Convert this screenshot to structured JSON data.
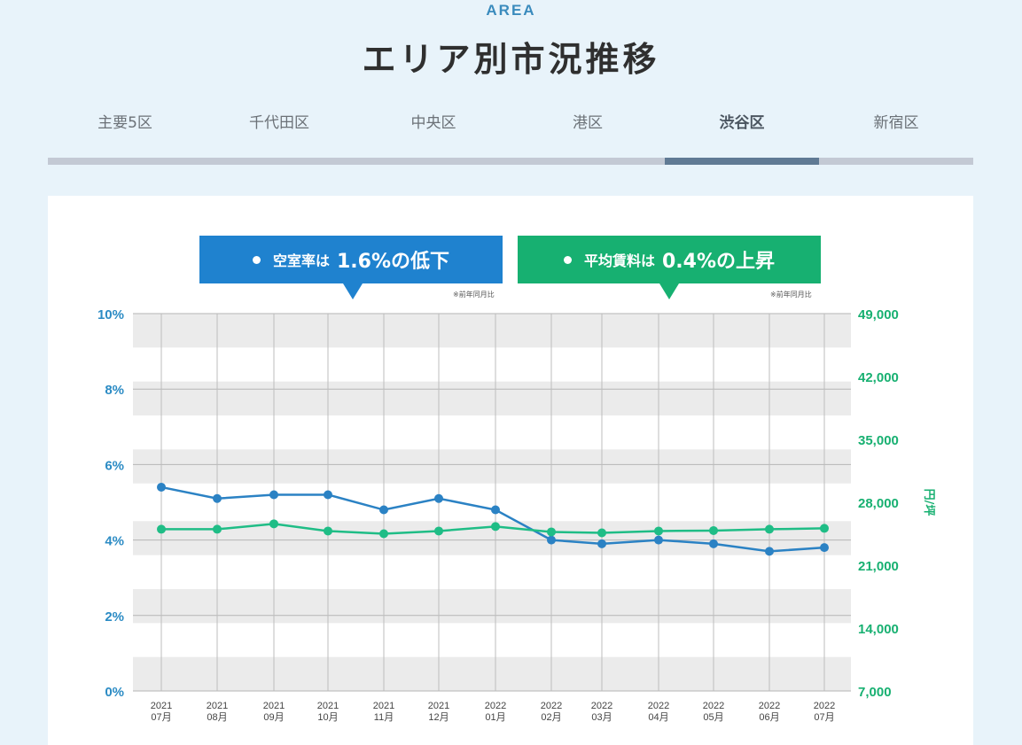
{
  "header": {
    "eyebrow": "AREA",
    "title": "エリア別市況推移"
  },
  "tabs": [
    {
      "label": "主要5区",
      "active": false
    },
    {
      "label": "千代田区",
      "active": false
    },
    {
      "label": "中央区",
      "active": false
    },
    {
      "label": "港区",
      "active": false
    },
    {
      "label": "渋谷区",
      "active": true
    },
    {
      "label": "新宿区",
      "active": false
    }
  ],
  "callouts": {
    "vacancy": {
      "lead": "空室率は",
      "value": "1.6%の低下",
      "note": "※前年同月比"
    },
    "rent": {
      "lead": "平均賃料は",
      "value": "0.4%の上昇",
      "note": "※前年同月比"
    }
  },
  "colors": {
    "vacancy": "#2b82c4",
    "rent": "#1fbd86",
    "band": "#ebebeb"
  },
  "chart_data": {
    "type": "line",
    "categories": [
      [
        "2021",
        "07月"
      ],
      [
        "2021",
        "08月"
      ],
      [
        "2021",
        "09月"
      ],
      [
        "2021",
        "10月"
      ],
      [
        "2021",
        "11月"
      ],
      [
        "2021",
        "12月"
      ],
      [
        "2022",
        "01月"
      ],
      [
        "2022",
        "02月"
      ],
      [
        "2022",
        "03月"
      ],
      [
        "2022",
        "04月"
      ],
      [
        "2022",
        "05月"
      ],
      [
        "2022",
        "06月"
      ],
      [
        "2022",
        "07月"
      ]
    ],
    "series": [
      {
        "name": "空室率",
        "axis": "left",
        "values": [
          5.4,
          5.1,
          5.2,
          5.2,
          4.8,
          5.1,
          4.8,
          4.0,
          3.9,
          4.0,
          3.9,
          3.7,
          3.8
        ]
      },
      {
        "name": "平均賃料",
        "axis": "right",
        "values": [
          25000,
          25000,
          25600,
          24800,
          24500,
          24800,
          25300,
          24700,
          24600,
          24800,
          24850,
          25000,
          25100
        ]
      }
    ],
    "y_left": {
      "min": 0,
      "max": 10,
      "ticks": [
        "0%",
        "2%",
        "4%",
        "6%",
        "8%",
        "10%"
      ]
    },
    "y_right": {
      "min": 7000,
      "max": 49000,
      "ticks": [
        "7,000",
        "14,000",
        "21,000",
        "28,000",
        "35,000",
        "42,000",
        "49,000"
      ],
      "label": "円/坪"
    }
  }
}
